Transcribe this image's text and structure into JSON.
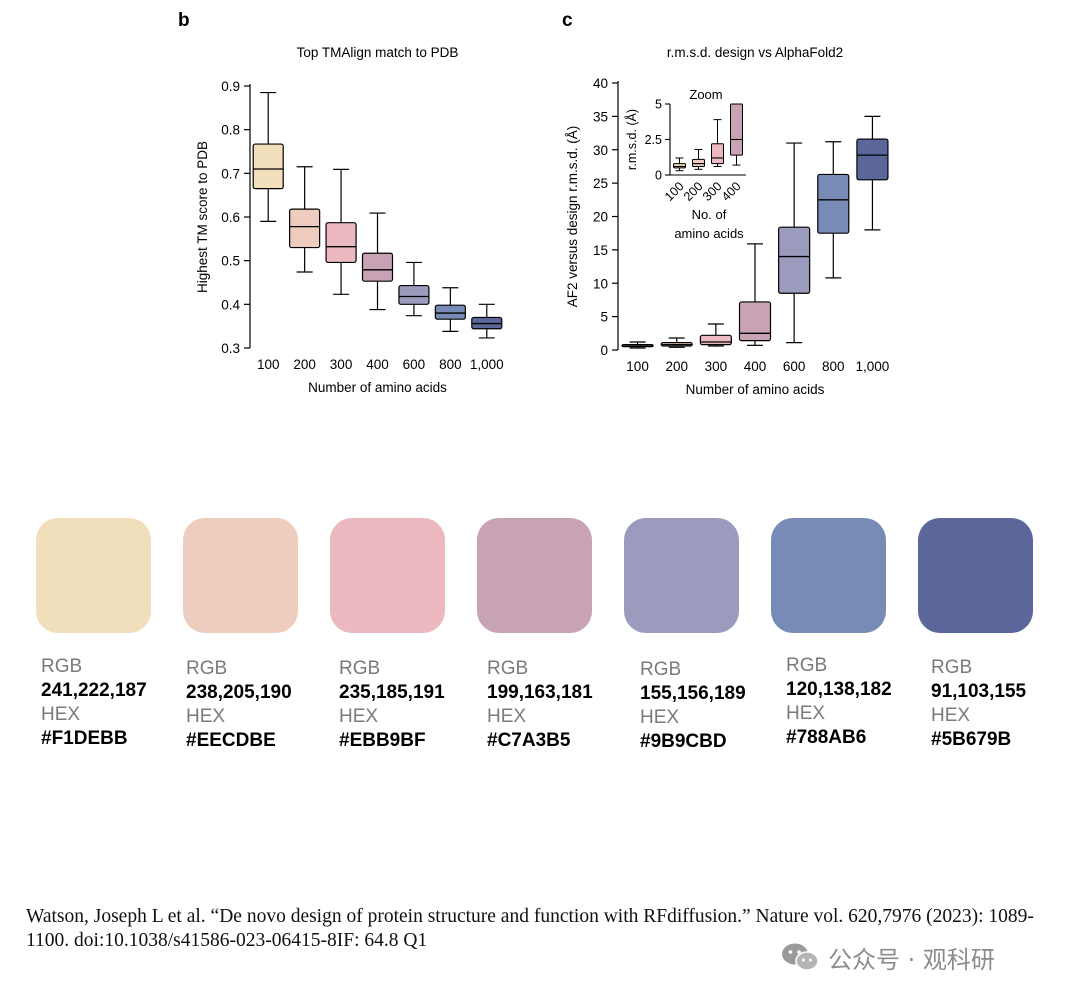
{
  "chart_data": [
    {
      "panel_letter": "b",
      "type": "box",
      "title": "Top TMAlign match to PDB",
      "xlabel": "Number of amino acids",
      "ylabel": "Highest TM score to PDB",
      "ylim": [
        0.3,
        0.9
      ],
      "yticks": [
        "0.3",
        "0.4",
        "0.5",
        "0.6",
        "0.7",
        "0.8",
        "0.9"
      ],
      "categories": [
        "100",
        "200",
        "300",
        "400",
        "600",
        "800",
        "1,000"
      ],
      "boxes": [
        {
          "min": 0.59,
          "q1": 0.665,
          "median": 0.71,
          "q3": 0.767,
          "max": 0.885
        },
        {
          "min": 0.474,
          "q1": 0.53,
          "median": 0.578,
          "q3": 0.618,
          "max": 0.715
        },
        {
          "min": 0.423,
          "q1": 0.496,
          "median": 0.532,
          "q3": 0.587,
          "max": 0.709
        },
        {
          "min": 0.388,
          "q1": 0.453,
          "median": 0.479,
          "q3": 0.517,
          "max": 0.609
        },
        {
          "min": 0.374,
          "q1": 0.4,
          "median": 0.418,
          "q3": 0.443,
          "max": 0.496
        },
        {
          "min": 0.338,
          "q1": 0.366,
          "median": 0.38,
          "q3": 0.398,
          "max": 0.438
        },
        {
          "min": 0.323,
          "q1": 0.344,
          "median": 0.356,
          "q3": 0.37,
          "max": 0.4
        }
      ]
    },
    {
      "panel_letter": "c",
      "type": "box",
      "title": "r.m.s.d. design vs AlphaFold2",
      "xlabel": "Number of amino acids",
      "ylabel": "AF2 versus design r.m.s.d. (Å)",
      "ylim": [
        0,
        40
      ],
      "yticks": [
        "0",
        "5",
        "10",
        "15",
        "20",
        "25",
        "30",
        "35",
        "40"
      ],
      "categories": [
        "100",
        "200",
        "300",
        "400",
        "600",
        "800",
        "1,000"
      ],
      "boxes": [
        {
          "min": 0.3,
          "q1": 0.5,
          "median": 0.6,
          "q3": 0.8,
          "max": 1.2
        },
        {
          "min": 0.4,
          "q1": 0.6,
          "median": 0.8,
          "q3": 1.1,
          "max": 1.8
        },
        {
          "min": 0.6,
          "q1": 0.8,
          "median": 1.2,
          "q3": 2.2,
          "max": 3.9
        },
        {
          "min": 0.7,
          "q1": 1.4,
          "median": 2.5,
          "q3": 7.2,
          "max": 15.9
        },
        {
          "min": 1.1,
          "q1": 8.5,
          "median": 14.0,
          "q3": 18.4,
          "max": 31.0
        },
        {
          "min": 10.8,
          "q1": 17.5,
          "median": 22.5,
          "q3": 26.3,
          "max": 31.2
        },
        {
          "min": 18.0,
          "q1": 25.5,
          "median": 29.2,
          "q3": 31.6,
          "max": 35.0
        }
      ],
      "inset": {
        "title": "Zoom",
        "xlabel_lines": [
          "No. of",
          "amino acids"
        ],
        "ylabel": "r.m.s.d. (Å)",
        "ylim": [
          0,
          5
        ],
        "yticks": [
          "0",
          "2.5",
          "5"
        ],
        "categories": [
          "100",
          "200",
          "300",
          "400"
        ]
      }
    }
  ],
  "palette": {
    "rgb_label": "RGB",
    "hex_label": "HEX",
    "swatches": [
      {
        "rgb": "241,222,187",
        "hex": "#F1DEBB"
      },
      {
        "rgb": "238,205,190",
        "hex": "#EECDBE"
      },
      {
        "rgb": "235,185,191",
        "hex": "#EBB9BF"
      },
      {
        "rgb": "199,163,181",
        "hex": "#C7A3B5"
      },
      {
        "rgb": "155,156,189",
        "hex": "#9B9CBD"
      },
      {
        "rgb": "120,138,182",
        "hex": "#788AB6"
      },
      {
        "rgb": "91,103,155",
        "hex": "#5B679B"
      }
    ]
  },
  "citation": "Watson, Joseph L et al. “De novo design of protein structure and function with RFdiffusion.” Nature vol. 620,7976 (2023): 1089-1100. doi:10.1038/s41586-023-06415-8IF: 64.8 Q1",
  "watermark": "公众号 · 观科研"
}
